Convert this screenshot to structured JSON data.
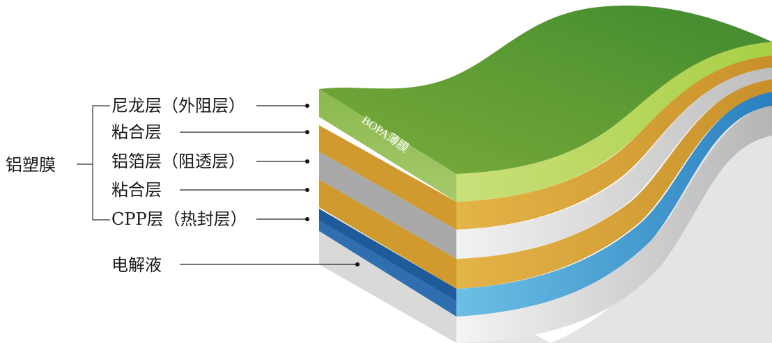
{
  "group_label": "铝塑膜",
  "layers": [
    {
      "label": "尼龙层（外阻层）",
      "color": "#8dc63f"
    },
    {
      "label": "粘合层",
      "color": "#d6a030"
    },
    {
      "label": "铝箔层（阻透层）",
      "color": "#c8c8c8"
    },
    {
      "label": "粘合层",
      "color": "#d6a030"
    },
    {
      "label": "CPP层（热封层）",
      "color": "#2e86c8"
    }
  ],
  "electrolyte_label": "电解液",
  "film_label": "BOPA薄膜"
}
